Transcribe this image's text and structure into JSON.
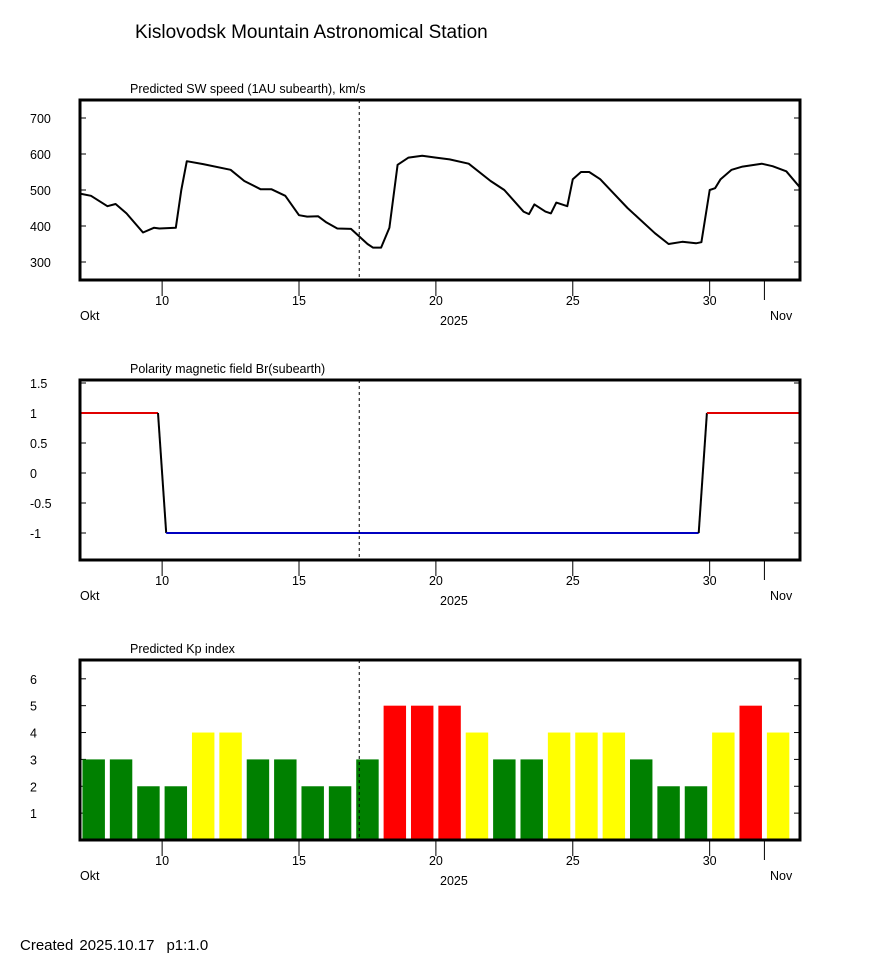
{
  "page": {
    "title": "Kislovodsk Mountain Astronomical Station"
  },
  "footer": {
    "created_label": "Created",
    "created_date": "2025.10.17",
    "page_ref": "p1:1.0"
  },
  "time_axis": {
    "day_labels": [
      "10",
      "15",
      "20",
      "25",
      "30"
    ],
    "start_month_label": "Okt",
    "end_month_label": "Nov",
    "year_label": "2025"
  },
  "colors": {
    "sw_line": "#000000",
    "polarity_positive": "#e00000",
    "polarity_negative": "#0000c0",
    "polarity_transition": "#000000",
    "kp_green": "#008000",
    "kp_yellow": "#ffff00",
    "kp_red": "#ff0000"
  },
  "chart_data": [
    {
      "id": "sw",
      "type": "line",
      "title": "Predicted SW speed (1AU subearth), km/s",
      "xlabel": "2025",
      "x_unit": "day of October 2025",
      "xlim": [
        7.0,
        33.3
      ],
      "ylim": [
        250,
        750
      ],
      "y_ticks": [
        300,
        400,
        500,
        600,
        700
      ],
      "y_tick_labels": [
        "300",
        "400",
        "500",
        "600",
        "700"
      ],
      "current_time_marker": 17.2,
      "series": [
        {
          "name": "SW speed",
          "x": [
            7.0,
            7.4,
            8.0,
            8.3,
            8.7,
            9.3,
            9.7,
            9.9,
            10.5,
            10.7,
            10.9,
            11.5,
            12.5,
            13.0,
            13.6,
            14.0,
            14.5,
            15.0,
            15.3,
            15.7,
            16.0,
            16.4,
            16.9,
            17.5,
            17.7,
            18.0,
            18.3,
            18.6,
            19.0,
            19.5,
            20.0,
            20.5,
            21.2,
            22.0,
            22.5,
            23.2,
            23.4,
            23.6,
            24.0,
            24.2,
            24.4,
            24.8,
            25.0,
            25.3,
            25.6,
            26.0,
            26.5,
            27.0,
            28.0,
            28.5,
            29.0,
            29.5,
            29.7,
            30.0,
            30.2,
            30.4,
            30.8,
            31.2,
            31.9,
            32.3,
            32.8,
            33.3
          ],
          "y": [
            490,
            484,
            455,
            461,
            435,
            382,
            395,
            393,
            395,
            500,
            580,
            572,
            556,
            525,
            502,
            502,
            484,
            430,
            426,
            427,
            410,
            393,
            392,
            350,
            340,
            340,
            395,
            570,
            590,
            595,
            590,
            585,
            573,
            525,
            500,
            440,
            433,
            460,
            440,
            435,
            465,
            455,
            530,
            550,
            550,
            530,
            490,
            450,
            380,
            350,
            356,
            352,
            355,
            500,
            505,
            530,
            556,
            565,
            573,
            566,
            552,
            507
          ]
        }
      ]
    },
    {
      "id": "polarity",
      "type": "line",
      "title": "Polarity magnetic field  Br(subearth)",
      "xlabel": "2025",
      "x_unit": "day of October 2025",
      "xlim": [
        7.0,
        33.3
      ],
      "ylim": [
        -1.45,
        1.55
      ],
      "y_ticks": [
        1.5,
        1,
        0.5,
        0,
        -0.5,
        -1
      ],
      "y_tick_labels": [
        "1.5",
        "1",
        "0.5",
        "0",
        "-0.5",
        "-1"
      ],
      "current_time_marker": 17.2,
      "series": [
        {
          "name": "positive",
          "x": [
            7.0,
            9.85
          ],
          "y": [
            1,
            1
          ]
        },
        {
          "name": "transition",
          "x": [
            9.85,
            10.15
          ],
          "y": [
            1,
            -1
          ]
        },
        {
          "name": "negative",
          "x": [
            10.15,
            29.6
          ],
          "y": [
            -1,
            -1
          ]
        },
        {
          "name": "transition",
          "x": [
            29.6,
            29.9
          ],
          "y": [
            -1,
            1
          ]
        },
        {
          "name": "positive",
          "x": [
            29.9,
            33.3
          ],
          "y": [
            1,
            1
          ]
        }
      ]
    },
    {
      "id": "kp",
      "type": "bar",
      "title": "Predicted Kp index",
      "xlabel": "2025",
      "x_unit": "day of October 2025",
      "xlim": [
        7.0,
        33.3
      ],
      "ylim": [
        0,
        6.7
      ],
      "y_ticks": [
        1,
        2,
        3,
        4,
        5,
        6
      ],
      "y_tick_labels": [
        "1",
        "2",
        "3",
        "4",
        "5",
        "6"
      ],
      "current_time_marker": 17.2,
      "bar_width_days": 0.82,
      "bar_x": [
        7.5,
        8.5,
        9.5,
        10.5,
        11.5,
        12.5,
        13.5,
        14.5,
        15.5,
        16.5,
        17.5,
        18.5,
        19.5,
        20.5,
        21.5,
        22.5,
        23.5,
        24.5,
        25.5,
        26.5,
        27.5,
        28.5,
        29.5,
        30.5,
        31.5,
        32.5
      ],
      "values": [
        3,
        3,
        2,
        2,
        4,
        4,
        3,
        3,
        2,
        2,
        3,
        5,
        5,
        5,
        4,
        3,
        3,
        4,
        4,
        4,
        3,
        2,
        2,
        4,
        5,
        4
      ],
      "levels": [
        "green",
        "green",
        "green",
        "green",
        "yellow",
        "yellow",
        "green",
        "green",
        "green",
        "green",
        "green",
        "red",
        "red",
        "red",
        "yellow",
        "green",
        "green",
        "yellow",
        "yellow",
        "yellow",
        "green",
        "green",
        "green",
        "yellow",
        "red",
        "yellow"
      ]
    }
  ]
}
